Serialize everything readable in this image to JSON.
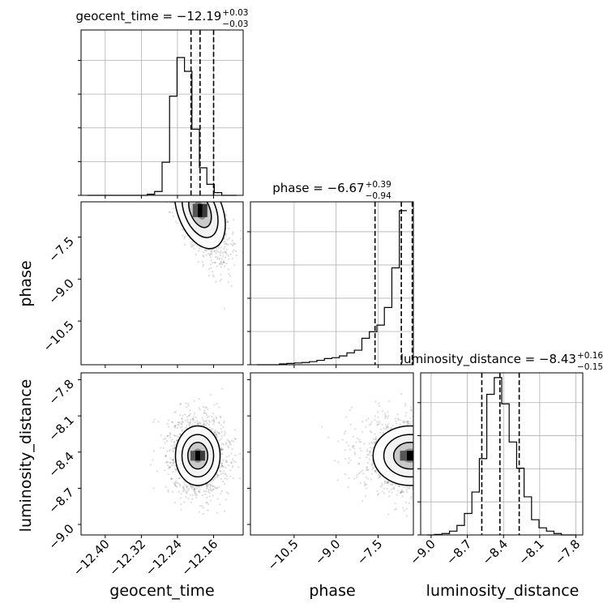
{
  "chart_data": {
    "type": "corner",
    "parameters": [
      "geocent_time",
      "phase",
      "luminosity_distance"
    ],
    "axes": {
      "geocent_time": {
        "label": "geocent_time",
        "range": [
          -12.4536,
          -12.0945
        ],
        "ticks": [
          -12.4,
          -12.32,
          -12.24,
          -12.16
        ],
        "tick_labels": [
          "−12.40",
          "−12.32",
          "−12.24",
          "−12.16"
        ]
      },
      "phase": {
        "label": "phase",
        "range": [
          -12.06,
          -6.24
        ],
        "ticks": [
          -10.5,
          -9.0,
          -7.5
        ],
        "tick_labels": [
          "−10.5",
          "−9.0",
          "−7.5"
        ]
      },
      "luminosity_distance": {
        "label": "luminosity_distance",
        "range": [
          -9.087,
          -7.743
        ],
        "ticks": [
          -9.0,
          -8.7,
          -8.4,
          -8.1,
          -7.8
        ],
        "tick_labels": [
          "−9.0",
          "−8.7",
          "−8.4",
          "−8.1",
          "−7.8"
        ]
      }
    },
    "marginals": [
      {
        "parameter": "geocent_time",
        "title_main": "geocent_time = −12.19",
        "title_sup": "+0.03",
        "title_sub": "−0.03",
        "quantiles": [
          -12.21,
          -12.19,
          -12.16
        ],
        "counts": [
          0,
          0,
          0,
          0,
          0,
          0,
          0,
          0,
          2,
          7,
          60,
          180,
          250,
          225,
          120,
          50,
          20,
          5,
          0,
          0
        ],
        "ymax": 300
      },
      {
        "parameter": "phase",
        "title_main": "phase = −6.67",
        "title_sup": "+0.39",
        "title_sub": "−0.94",
        "quantiles": [
          -7.61,
          -6.67,
          -6.28
        ],
        "counts": [
          0,
          0,
          0,
          2,
          3,
          4,
          5,
          7,
          10,
          14,
          16,
          20,
          27,
          33,
          60,
          75,
          90,
          130,
          220,
          350
        ],
        "ymax": 370
      },
      {
        "parameter": "luminosity_distance",
        "title_main": "luminosity_distance = −8.43",
        "title_sup": "+0.16",
        "title_sub": "−0.15",
        "quantiles": [
          -8.58,
          -8.43,
          -8.27
        ],
        "counts": [
          0,
          1,
          3,
          8,
          20,
          45,
          90,
          160,
          295,
          330,
          275,
          195,
          140,
          80,
          32,
          15,
          8,
          3,
          0,
          0
        ],
        "ymax": 340
      }
    ],
    "joint": [
      {
        "x": "geocent_time",
        "y": "phase",
        "peak": [
          -12.19,
          -6.55
        ],
        "spread": [
          0.026,
          0.75
        ],
        "corr": 0.6
      },
      {
        "x": "geocent_time",
        "y": "luminosity_distance",
        "peak": [
          -12.195,
          -8.43
        ],
        "spread": [
          0.026,
          0.13
        ],
        "corr": 0.0
      },
      {
        "x": "phase",
        "y": "luminosity_distance",
        "peak": [
          -6.35,
          -8.43
        ],
        "spread": [
          0.7,
          0.13
        ],
        "corr": 0.0
      }
    ],
    "grid": true
  }
}
